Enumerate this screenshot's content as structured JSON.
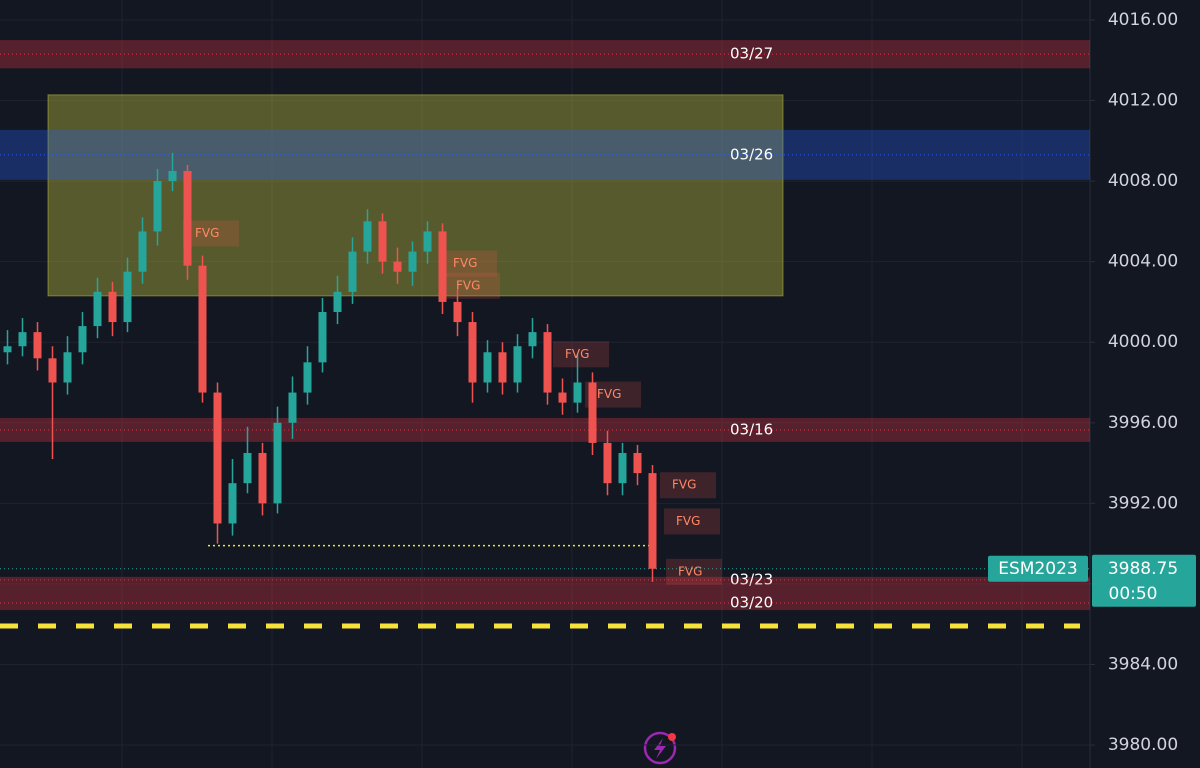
{
  "chart_data": {
    "type": "candlestick",
    "symbol": "ESM2023",
    "last_price": 3988.75,
    "countdown": "00:50",
    "ylim": [
      3978.86,
      4016.99
    ],
    "yticks": [
      {
        "value": 4016,
        "label": "4016.00"
      },
      {
        "value": 4012,
        "label": "4012.00"
      },
      {
        "value": 4008,
        "label": "4008.00"
      },
      {
        "value": 4004,
        "label": "4004.00"
      },
      {
        "value": 4000,
        "label": "4000.00"
      },
      {
        "value": 3996,
        "label": "3996.00"
      },
      {
        "value": 3992,
        "label": "3992.00"
      },
      {
        "value": 3988,
        "label": "3988.00"
      },
      {
        "value": 3984,
        "label": "3984.00"
      },
      {
        "value": 3980,
        "label": "3980.00"
      }
    ],
    "grid": true,
    "up_color": "#26a69a",
    "down_color": "#ef5350",
    "open": [
      3999.5,
      3999.8,
      4000.5,
      3999.2,
      3998.0,
      3999.5,
      4000.8,
      4002.5,
      4001.0,
      4003.5,
      4005.5,
      4008.0,
      4008.5,
      4003.8,
      3997.5,
      3991.0,
      3993.0,
      3994.5,
      3992.0,
      3996.0,
      3997.5,
      3999.0,
      4001.5,
      4002.5,
      4004.5,
      4006.0,
      4004.0,
      4003.5,
      4004.5,
      4005.5,
      4002.0,
      4001.0,
      3998.0,
      3999.5,
      3998.0,
      3999.8,
      4000.5,
      3997.5,
      3997.0,
      3998.0,
      3995.0,
      3993.0,
      3994.5,
      3993.5
    ],
    "high": [
      4000.6,
      4001.2,
      4001.0,
      3999.8,
      4000.3,
      4001.5,
      4003.2,
      4003.0,
      4004.2,
      4006.2,
      4008.6,
      4009.4,
      4008.8,
      4004.3,
      3998.0,
      3994.2,
      3995.8,
      3995.0,
      3996.8,
      3998.3,
      3999.8,
      4002.2,
      4003.3,
      4005.2,
      4006.6,
      4006.4,
      4004.7,
      4005.0,
      4006.0,
      4005.9,
      4002.6,
      4001.5,
      4000.1,
      4000.0,
      4000.4,
      4001.2,
      4000.9,
      3998.2,
      3999.4,
      3998.5,
      3995.6,
      3995.0,
      3994.9,
      3993.9
    ],
    "low": [
      3998.9,
      3999.3,
      3998.6,
      3994.2,
      3997.4,
      3998.9,
      4000.2,
      4000.3,
      4000.5,
      4002.9,
      4004.8,
      4007.5,
      4003.1,
      3997.0,
      3990.0,
      3990.4,
      3992.5,
      3991.4,
      3991.5,
      3995.2,
      3996.9,
      3998.5,
      4000.9,
      4001.9,
      4003.9,
      4003.4,
      4002.9,
      4002.8,
      4003.9,
      4001.4,
      4000.3,
      3997.0,
      3997.5,
      3997.4,
      3997.5,
      3999.2,
      3996.9,
      3996.4,
      3996.5,
      3994.4,
      3992.4,
      3992.4,
      3992.9,
      3988.1
    ],
    "close": [
      3999.8,
      4000.5,
      3999.2,
      3998.0,
      3999.5,
      4000.8,
      4002.5,
      4001.0,
      4003.5,
      4005.5,
      4008.0,
      4008.5,
      4003.8,
      3997.5,
      3991.0,
      3993.0,
      3994.5,
      3992.0,
      3996.0,
      3997.5,
      3999.0,
      4001.5,
      4002.5,
      4004.5,
      4006.0,
      4004.0,
      4003.5,
      4004.5,
      4005.5,
      4002.0,
      4001.0,
      3998.0,
      3999.5,
      3998.0,
      3999.8,
      4000.5,
      3997.5,
      3997.0,
      3998.0,
      3995.0,
      3993.0,
      3994.5,
      3993.5,
      3988.75
    ],
    "box": {
      "top": 4012.28,
      "bottom": 4002.3,
      "color": "#c8c83c"
    },
    "zones": [
      {
        "label": "03/27",
        "top": 4015.0,
        "bottom": 4013.6,
        "level": 4014.3,
        "color": "#f23645"
      },
      {
        "label": "03/26",
        "top": 4010.54,
        "bottom": 4008.06,
        "level": 4009.3,
        "color": "#2962ff"
      },
      {
        "label": "03/16",
        "top": 3996.24,
        "bottom": 3995.05,
        "level": 3995.64,
        "color": "#f23645"
      },
      {
        "label": "03/23",
        "top": 3988.35,
        "bottom": 3988.05,
        "level": 3988.2,
        "color": "#f23645"
      },
      {
        "label": "03/20",
        "top": 3988.05,
        "bottom": 3986.7,
        "level": 3987.05,
        "color": "#f23645"
      }
    ],
    "fvg": [
      {
        "label": "FVG",
        "value": 4005.4
      },
      {
        "label": "FVG",
        "value": 4003.9
      },
      {
        "label": "FVG",
        "value": 4002.8
      },
      {
        "label": "FVG",
        "value": 3999.4
      },
      {
        "label": "FVG",
        "value": 3997.4
      },
      {
        "label": "FVG",
        "value": 3992.9
      },
      {
        "label": "FVG",
        "value": 3991.1
      },
      {
        "label": "FVG",
        "value": 3988.6
      }
    ],
    "levels": [
      {
        "value": 3989.9,
        "color": "#e8e83a",
        "style": "dotted"
      },
      {
        "value": 3985.91,
        "color": "#f7e23a",
        "style": "dashed"
      }
    ]
  }
}
